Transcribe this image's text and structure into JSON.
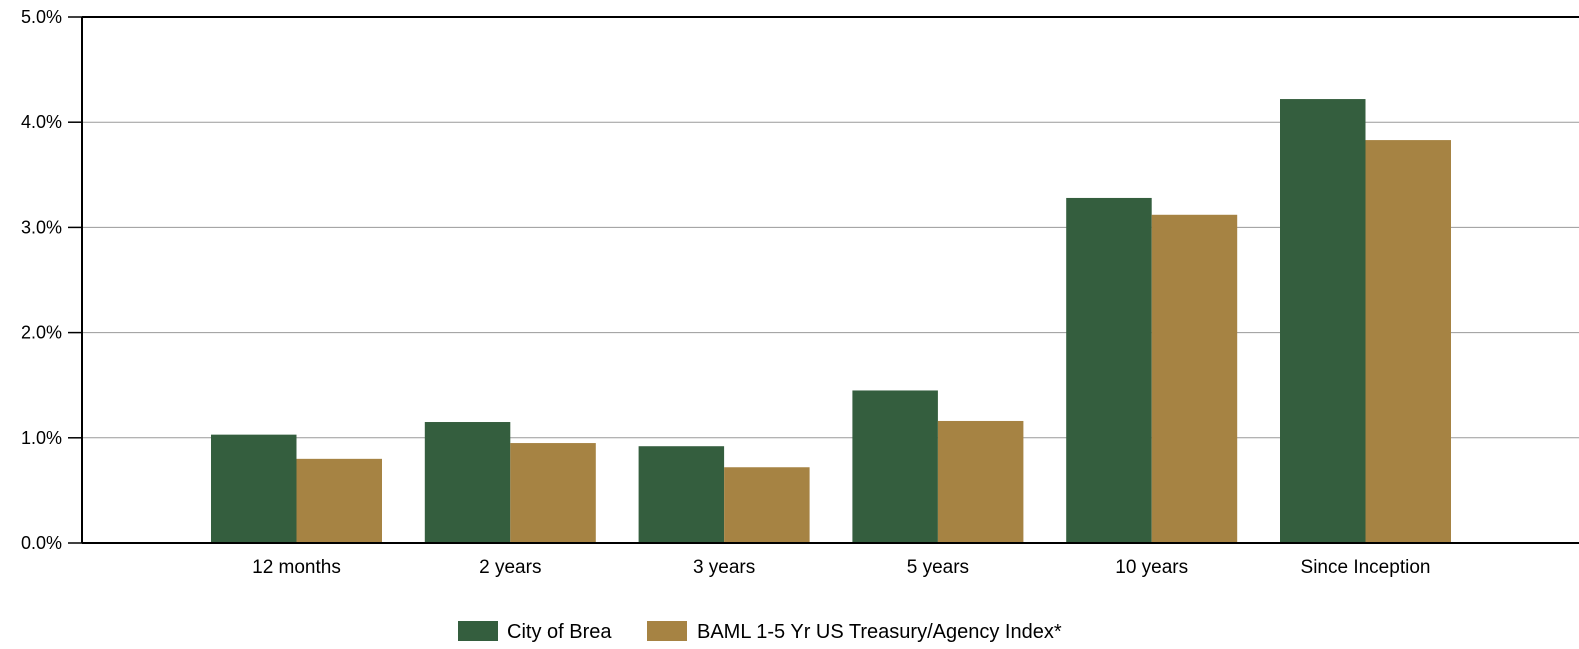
{
  "chart_data": {
    "type": "bar",
    "title": "",
    "xlabel": "",
    "ylabel": "",
    "categories": [
      "12 months",
      "2 years",
      "3 years",
      "5 years",
      "10 years",
      "Since Inception"
    ],
    "series": [
      {
        "name": "City of Brea",
        "color": "#345e3e",
        "values": [
          1.03,
          1.15,
          0.92,
          1.45,
          3.28,
          4.22
        ]
      },
      {
        "name": "BAML 1-5 Yr US Treasury/Agency Index*",
        "color": "#a68343",
        "values": [
          0.8,
          0.95,
          0.72,
          1.16,
          3.12,
          3.83
        ]
      }
    ],
    "ylim": [
      0,
      5
    ],
    "yticks": [
      0,
      1,
      2,
      3,
      4,
      5
    ],
    "ytick_labels": [
      "0.0%",
      "1.0%",
      "2.0%",
      "3.0%",
      "4.0%",
      "5.0%"
    ],
    "grid": true,
    "legend_position": "bottom-center"
  }
}
